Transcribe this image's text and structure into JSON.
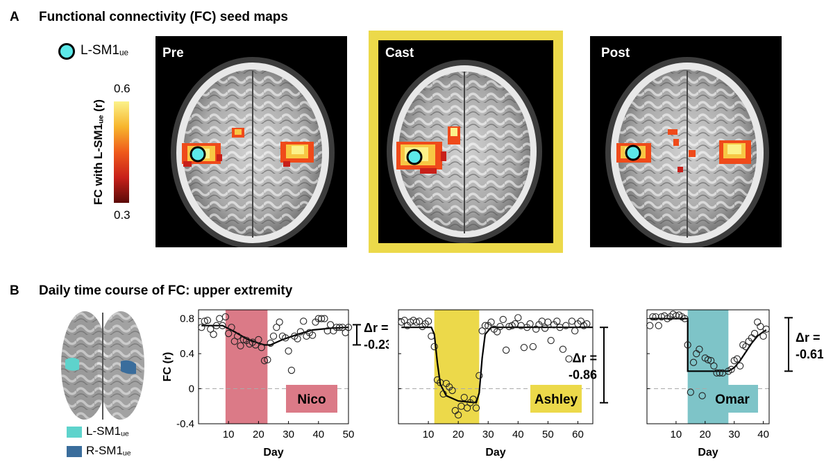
{
  "panel_a": {
    "letter": "A",
    "title": "Functional connectivity (FC) seed maps",
    "seed_legend": {
      "label": "L-SM1",
      "sub": "ue",
      "color": "#5ce9e9"
    },
    "colorbar": {
      "label_main": "FC with L-SM1",
      "label_sub": "ue",
      "label_tail": " (r)",
      "max_label": "0.6",
      "min_label": "0.3",
      "colors": [
        "#fbf28a",
        "#f7b52c",
        "#ef5a1b",
        "#c8201a",
        "#5a0a08"
      ]
    },
    "maps": [
      {
        "label": "Pre",
        "highlight": false
      },
      {
        "label": "Cast",
        "highlight": true
      },
      {
        "label": "Post",
        "highlight": false
      }
    ],
    "highlight_color": "#ecd94a"
  },
  "panel_b": {
    "letter": "B",
    "title": "Daily time course of FC: upper extremity",
    "legend": [
      {
        "label": "L-SM1",
        "sub": "ue",
        "color": "#5ed3cc"
      },
      {
        "label": "R-SM1",
        "sub": "ue",
        "color": "#3a6d9c"
      }
    ]
  },
  "chart_data": [
    {
      "type": "scatter",
      "title": "",
      "subject": "Nico",
      "xlabel": "Day",
      "ylabel": "FC (r)",
      "xlim": [
        0,
        50
      ],
      "ylim": [
        -0.4,
        0.9
      ],
      "xticks": [
        10,
        20,
        30,
        40,
        50
      ],
      "yticks": [
        -0.4,
        0,
        0.4,
        0.8
      ],
      "ytick_labels": [
        "-0.4",
        "0",
        "0.4",
        "0.8"
      ],
      "cast_period": [
        9,
        23
      ],
      "cast_color": "#db7a87",
      "delta_label": "Δr =",
      "delta_value": "-0.23",
      "delta_range": [
        0.5,
        0.73
      ],
      "points": [
        [
          1,
          0.7
        ],
        [
          2,
          0.77
        ],
        [
          3,
          0.78
        ],
        [
          4,
          0.68
        ],
        [
          5,
          0.62
        ],
        [
          6,
          0.72
        ],
        [
          7,
          0.8
        ],
        [
          8,
          0.72
        ],
        [
          9,
          0.82
        ],
        [
          10,
          0.63
        ],
        [
          11,
          0.7
        ],
        [
          12,
          0.54
        ],
        [
          13,
          0.6
        ],
        [
          14,
          0.49
        ],
        [
          15,
          0.56
        ],
        [
          16,
          0.55
        ],
        [
          17,
          0.51
        ],
        [
          18,
          0.53
        ],
        [
          19,
          0.5
        ],
        [
          20,
          0.56
        ],
        [
          21,
          0.47
        ],
        [
          22,
          0.32
        ],
        [
          23,
          0.33
        ],
        [
          24,
          0.52
        ],
        [
          25,
          0.6
        ],
        [
          26,
          0.7
        ],
        [
          27,
          0.76
        ],
        [
          28,
          0.6
        ],
        [
          29,
          0.58
        ],
        [
          30,
          0.43
        ],
        [
          31,
          0.21
        ],
        [
          32,
          0.6
        ],
        [
          33,
          0.57
        ],
        [
          34,
          0.65
        ],
        [
          35,
          0.77
        ],
        [
          36,
          0.6
        ],
        [
          37,
          0.64
        ],
        [
          38,
          0.61
        ],
        [
          39,
          0.76
        ],
        [
          40,
          0.8
        ],
        [
          41,
          0.8
        ],
        [
          42,
          0.8
        ],
        [
          43,
          0.66
        ],
        [
          44,
          0.73
        ],
        [
          45,
          0.66
        ],
        [
          46,
          0.7
        ],
        [
          47,
          0.7
        ],
        [
          48,
          0.7
        ],
        [
          49,
          0.64
        ],
        [
          50,
          0.7
        ]
      ],
      "fit": [
        [
          1,
          0.72
        ],
        [
          8,
          0.72
        ],
        [
          12,
          0.65
        ],
        [
          16,
          0.57
        ],
        [
          20,
          0.52
        ],
        [
          22,
          0.5
        ],
        [
          24,
          0.5
        ],
        [
          28,
          0.56
        ],
        [
          33,
          0.62
        ],
        [
          38,
          0.67
        ],
        [
          44,
          0.69
        ],
        [
          50,
          0.7
        ]
      ]
    },
    {
      "type": "scatter",
      "title": "",
      "subject": "Ashley",
      "xlabel": "Day",
      "ylabel": "",
      "xlim": [
        0,
        65
      ],
      "ylim": [
        -0.4,
        0.9
      ],
      "xticks": [
        10,
        20,
        30,
        40,
        50,
        60
      ],
      "yticks": [
        -0.4,
        0,
        0.4,
        0.8
      ],
      "cast_period": [
        12,
        27
      ],
      "cast_color": "#ecd94a",
      "delta_label": "Δr =",
      "delta_value": "-0.86",
      "delta_range": [
        -0.16,
        0.7
      ],
      "points": [
        [
          1,
          0.76
        ],
        [
          2,
          0.78
        ],
        [
          3,
          0.72
        ],
        [
          4,
          0.76
        ],
        [
          5,
          0.78
        ],
        [
          6,
          0.76
        ],
        [
          7,
          0.77
        ],
        [
          8,
          0.71
        ],
        [
          9,
          0.74
        ],
        [
          10,
          0.77
        ],
        [
          11,
          0.6
        ],
        [
          12,
          0.48
        ],
        [
          13,
          0.1
        ],
        [
          14,
          0.07
        ],
        [
          15,
          -0.06
        ],
        [
          16,
          0.06
        ],
        [
          17,
          0.02
        ],
        [
          18,
          -0.02
        ],
        [
          19,
          -0.25
        ],
        [
          20,
          -0.3
        ],
        [
          21,
          -0.2
        ],
        [
          22,
          -0.1
        ],
        [
          23,
          -0.22
        ],
        [
          24,
          -0.16
        ],
        [
          25,
          -0.12
        ],
        [
          26,
          -0.22
        ],
        [
          27,
          0.15
        ],
        [
          28,
          0.66
        ],
        [
          29,
          0.72
        ],
        [
          30,
          0.72
        ],
        [
          31,
          0.76
        ],
        [
          32,
          0.68
        ],
        [
          33,
          0.65
        ],
        [
          34,
          0.71
        ],
        [
          35,
          0.79
        ],
        [
          36,
          0.44
        ],
        [
          37,
          0.71
        ],
        [
          38,
          0.72
        ],
        [
          39,
          0.74
        ],
        [
          40,
          0.81
        ],
        [
          41,
          0.72
        ],
        [
          42,
          0.47
        ],
        [
          43,
          0.7
        ],
        [
          44,
          0.74
        ],
        [
          45,
          0.48
        ],
        [
          46,
          0.68
        ],
        [
          47,
          0.73
        ],
        [
          48,
          0.77
        ],
        [
          49,
          0.69
        ],
        [
          50,
          0.76
        ],
        [
          51,
          0.55
        ],
        [
          52,
          0.73
        ],
        [
          53,
          0.77
        ],
        [
          54,
          0.7
        ],
        [
          55,
          0.45
        ],
        [
          56,
          0.72
        ],
        [
          57,
          0.34
        ],
        [
          58,
          0.77
        ],
        [
          59,
          0.66
        ],
        [
          60,
          0.74
        ],
        [
          61,
          0.77
        ],
        [
          62,
          0.72
        ],
        [
          63,
          0.74
        ]
      ],
      "fit": [
        [
          1,
          0.7
        ],
        [
          11,
          0.7
        ],
        [
          12,
          0.62
        ],
        [
          13,
          0.3
        ],
        [
          14,
          0.05
        ],
        [
          16,
          -0.08
        ],
        [
          20,
          -0.14
        ],
        [
          26,
          -0.16
        ],
        [
          27,
          -0.05
        ],
        [
          28,
          0.35
        ],
        [
          29,
          0.62
        ],
        [
          31,
          0.7
        ],
        [
          65,
          0.7
        ]
      ]
    },
    {
      "type": "scatter",
      "title": "",
      "subject": "Omar",
      "xlabel": "Day",
      "ylabel": "",
      "xlim": [
        0,
        42
      ],
      "ylim": [
        -0.4,
        0.9
      ],
      "xticks": [
        10,
        20,
        30,
        40
      ],
      "yticks": [
        -0.4,
        0,
        0.4,
        0.8
      ],
      "cast_period": [
        14,
        28
      ],
      "cast_color": "#7ec4c8",
      "delta_label": "Δr =",
      "delta_value": "-0.61",
      "delta_range": [
        0.2,
        0.81
      ],
      "points": [
        [
          1,
          0.72
        ],
        [
          2,
          0.82
        ],
        [
          3,
          0.82
        ],
        [
          4,
          0.72
        ],
        [
          5,
          0.82
        ],
        [
          6,
          0.83
        ],
        [
          7,
          0.8
        ],
        [
          8,
          0.82
        ],
        [
          9,
          0.85
        ],
        [
          10,
          0.83
        ],
        [
          11,
          0.84
        ],
        [
          12,
          0.82
        ],
        [
          13,
          0.8
        ],
        [
          14,
          0.5
        ],
        [
          15,
          -0.04
        ],
        [
          16,
          0.3
        ],
        [
          17,
          0.4
        ],
        [
          18,
          0.45
        ],
        [
          19,
          -0.08
        ],
        [
          20,
          0.35
        ],
        [
          21,
          0.33
        ],
        [
          22,
          0.32
        ],
        [
          23,
          0.26
        ],
        [
          24,
          0.18
        ],
        [
          25,
          0.18
        ],
        [
          26,
          0.18
        ],
        [
          27,
          -0.02
        ],
        [
          28,
          0.2
        ],
        [
          29,
          0.22
        ],
        [
          30,
          0.32
        ],
        [
          31,
          0.34
        ],
        [
          32,
          0.26
        ],
        [
          33,
          0.5
        ],
        [
          34,
          0.48
        ],
        [
          35,
          0.54
        ],
        [
          36,
          0.58
        ],
        [
          37,
          0.63
        ],
        [
          38,
          0.76
        ],
        [
          39,
          0.71
        ],
        [
          40,
          0.6
        ],
        [
          41,
          0.68
        ]
      ],
      "fit": [
        [
          1,
          0.8
        ],
        [
          14,
          0.8
        ],
        [
          14,
          0.2
        ],
        [
          28,
          0.2
        ],
        [
          30,
          0.24
        ],
        [
          32,
          0.32
        ],
        [
          34,
          0.42
        ],
        [
          36,
          0.52
        ],
        [
          38,
          0.6
        ],
        [
          40,
          0.65
        ],
        [
          41,
          0.67
        ]
      ]
    }
  ]
}
